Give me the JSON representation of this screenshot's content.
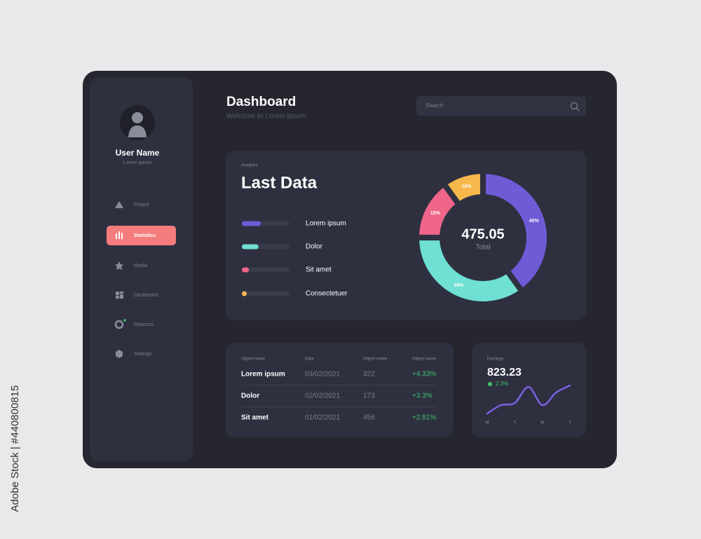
{
  "watermark": "Adobe Stock | #440800815",
  "sidebar": {
    "user_name": "User Name",
    "user_role": "Lorem ipsum",
    "nav": [
      "Project",
      "Statistics",
      "Media",
      "Dashboard",
      "Reposrts",
      "Settings"
    ],
    "active_nav": 1
  },
  "header": {
    "title": "Dashboard",
    "subtitle": "Welcome to Lorem ipsum",
    "search_placeholder": "Search"
  },
  "analytics": {
    "label": "Analytics",
    "title": "Last Data"
  },
  "chart_data": [
    {
      "type": "pie",
      "center_value": 475.05,
      "center_label": "Total",
      "categories": [
        "Lorem ipsum",
        "Dolor",
        "Sit amet",
        "Consectetuer"
      ],
      "values": [
        40,
        35,
        15,
        10
      ],
      "value_labels": [
        "40%",
        "35%",
        "15%",
        "10%"
      ],
      "colors": [
        "#6f5bd6",
        "#6fe0d3",
        "#f0658a",
        "#f7b84b"
      ]
    },
    {
      "type": "line",
      "title": "Earnings",
      "value": 823.23,
      "change": "2.3%",
      "categories": [
        "M",
        null,
        "T",
        null,
        "W",
        null,
        "T"
      ],
      "values": [
        10,
        22,
        25,
        48,
        22,
        40,
        50
      ],
      "color": "#7b61e0"
    }
  ],
  "table": {
    "columns": [
      "Object name",
      "Date",
      "Object name",
      "Object name"
    ],
    "rows": [
      [
        "Lorem ipsum",
        "03/02/2021",
        "322",
        "+4.33%"
      ],
      [
        "Dolor",
        "02/02/2021",
        "173",
        "+3.3%"
      ],
      [
        "Sit amet",
        "01/02/2021",
        "456",
        "+2.81%"
      ]
    ]
  }
}
